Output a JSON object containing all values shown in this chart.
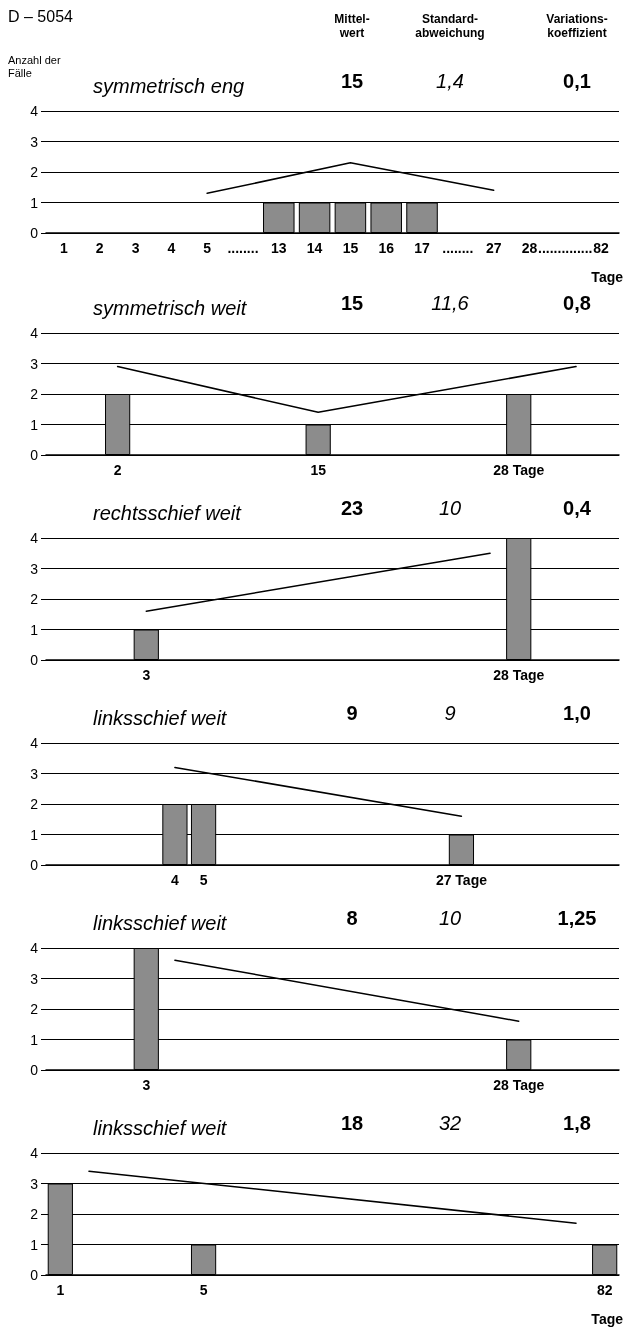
{
  "chart_data": [
    {
      "type": "other",
      "title": "D – 5054",
      "annotations": [
        "Mittel-\nwert",
        "Standard-\nabweichung",
        "Variations-\nkoeffizient"
      ]
    },
    {
      "type": "bar",
      "title": "symmetrisch eng",
      "annotations": [
        "15",
        "1,4",
        "0,1"
      ],
      "ylabel": "Anzahl der Fälle",
      "xlabel": "Tage",
      "categories": [
        "1",
        "2",
        "3",
        "4",
        "5",
        "........",
        "13",
        "14",
        "15",
        "16",
        "17",
        "........",
        "27",
        "28",
        "..............",
        "82"
      ],
      "ylim": [
        0,
        4
      ],
      "yticks": [
        0,
        1,
        2,
        3,
        4
      ],
      "grid": "y",
      "marker": "none",
      "line_style": "solid",
      "series": [
        {
          "type": "bar",
          "color": "#8c8c8c",
          "values": [
            null,
            null,
            null,
            null,
            null,
            null,
            1,
            1,
            1,
            1,
            1,
            null,
            null,
            null,
            null,
            null
          ]
        },
        {
          "type": "line",
          "color": "#000000",
          "values": [
            null,
            null,
            null,
            null,
            1.3,
            null,
            null,
            null,
            2.3,
            null,
            null,
            null,
            1.4,
            null,
            null,
            null
          ]
        }
      ]
    },
    {
      "type": "bar",
      "title": "symmetrisch weit",
      "annotations": [
        "15",
        "11,6",
        "0,8"
      ],
      "categories": [
        null,
        null,
        "2",
        null,
        null,
        null,
        null,
        null,
        null,
        "15",
        null,
        null,
        null,
        null,
        null,
        null,
        "28 Tage",
        null,
        null,
        null
      ],
      "ylim": [
        0,
        4
      ],
      "yticks": [
        0,
        1,
        2,
        3,
        4
      ],
      "grid": "y",
      "marker": "none",
      "line_style": "solid",
      "series": [
        {
          "type": "bar",
          "color": "#8c8c8c",
          "values": [
            null,
            null,
            2,
            null,
            null,
            null,
            null,
            null,
            null,
            1,
            null,
            null,
            null,
            null,
            null,
            null,
            2,
            null,
            null,
            null
          ]
        },
        {
          "type": "line",
          "color": "#000000",
          "values": [
            null,
            null,
            2.9,
            null,
            null,
            null,
            null,
            null,
            null,
            1.4,
            null,
            null,
            null,
            null,
            null,
            null,
            null,
            null,
            2.9,
            null
          ]
        }
      ]
    },
    {
      "type": "bar",
      "title": "rechtsschief weit",
      "annotations": [
        "23",
        "10",
        "0,4"
      ],
      "categories": [
        null,
        null,
        null,
        "3",
        null,
        null,
        null,
        null,
        null,
        null,
        null,
        null,
        null,
        null,
        null,
        null,
        "28 Tage",
        null,
        null,
        null
      ],
      "ylim": [
        0,
        4
      ],
      "yticks": [
        0,
        1,
        2,
        3,
        4
      ],
      "grid": "y",
      "marker": "none",
      "line_style": "solid",
      "series": [
        {
          "type": "bar",
          "color": "#8c8c8c",
          "values": [
            null,
            null,
            null,
            1,
            null,
            null,
            null,
            null,
            null,
            null,
            null,
            null,
            null,
            null,
            null,
            null,
            4,
            null,
            null,
            null
          ]
        },
        {
          "type": "line",
          "color": "#000000",
          "values": [
            null,
            null,
            null,
            1.6,
            null,
            null,
            null,
            null,
            null,
            null,
            null,
            null,
            null,
            null,
            null,
            3.5,
            null,
            null,
            null,
            null
          ]
        }
      ]
    },
    {
      "type": "bar",
      "title": "linksschief weit",
      "annotations": [
        "9",
        "9",
        "1,0"
      ],
      "categories": [
        null,
        null,
        null,
        null,
        "4",
        "5",
        null,
        null,
        null,
        null,
        null,
        null,
        null,
        null,
        "27 Tage",
        null,
        null,
        null,
        null,
        null
      ],
      "ylim": [
        0,
        4
      ],
      "yticks": [
        0,
        1,
        2,
        3,
        4
      ],
      "grid": "y",
      "marker": "none",
      "line_style": "solid",
      "series": [
        {
          "type": "bar",
          "color": "#8c8c8c",
          "values": [
            null,
            null,
            null,
            null,
            2,
            2,
            null,
            null,
            null,
            null,
            null,
            null,
            null,
            null,
            1,
            null,
            null,
            null,
            null,
            null
          ]
        },
        {
          "type": "line",
          "color": "#000000",
          "values": [
            null,
            null,
            null,
            null,
            3.2,
            null,
            null,
            null,
            null,
            null,
            null,
            null,
            null,
            null,
            1.6,
            null,
            null,
            null,
            null,
            null
          ]
        }
      ]
    },
    {
      "type": "bar",
      "title": "linksschief weit",
      "annotations": [
        "8",
        "10",
        "1,25"
      ],
      "categories": [
        null,
        null,
        null,
        "3",
        null,
        null,
        null,
        null,
        null,
        null,
        null,
        null,
        null,
        null,
        null,
        null,
        "28 Tage",
        null,
        null,
        null
      ],
      "ylim": [
        0,
        4
      ],
      "yticks": [
        0,
        1,
        2,
        3,
        4
      ],
      "grid": "y",
      "marker": "none",
      "line_style": "solid",
      "series": [
        {
          "type": "bar",
          "color": "#8c8c8c",
          "values": [
            null,
            null,
            null,
            4,
            null,
            null,
            null,
            null,
            null,
            null,
            null,
            null,
            null,
            null,
            null,
            null,
            1,
            null,
            null,
            null
          ]
        },
        {
          "type": "line",
          "color": "#000000",
          "values": [
            null,
            null,
            null,
            null,
            3.6,
            null,
            null,
            null,
            null,
            null,
            null,
            null,
            null,
            null,
            null,
            null,
            1.6,
            null,
            null,
            null
          ]
        }
      ]
    },
    {
      "type": "bar",
      "title": "linksschief weit",
      "annotations": [
        "18",
        "32",
        "1,8"
      ],
      "xlabel": "Tage",
      "categories": [
        "1",
        null,
        null,
        null,
        null,
        "5",
        null,
        null,
        null,
        null,
        null,
        null,
        null,
        null,
        null,
        null,
        null,
        null,
        null,
        "82"
      ],
      "ylim": [
        0,
        4
      ],
      "yticks": [
        0,
        1,
        2,
        3,
        4
      ],
      "grid": "y",
      "marker": "none",
      "line_style": "solid",
      "series": [
        {
          "type": "bar",
          "color": "#8c8c8c",
          "values": [
            3,
            null,
            null,
            null,
            null,
            1,
            null,
            null,
            null,
            null,
            null,
            null,
            null,
            null,
            null,
            null,
            null,
            null,
            null,
            1
          ]
        },
        {
          "type": "line",
          "color": "#000000",
          "values": [
            null,
            3.4,
            null,
            null,
            null,
            null,
            null,
            null,
            null,
            null,
            null,
            null,
            null,
            null,
            null,
            null,
            null,
            null,
            1.7,
            null
          ]
        }
      ]
    }
  ]
}
